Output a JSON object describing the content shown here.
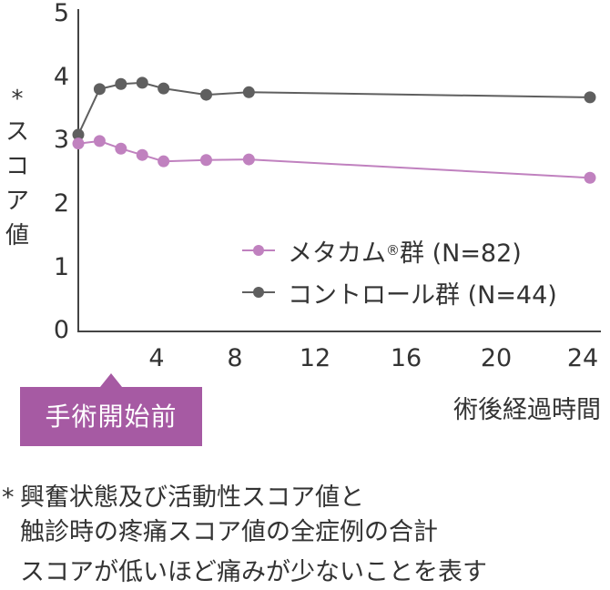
{
  "chart_data": {
    "type": "line",
    "title": "",
    "xlabel": "術後経過時間",
    "ylabel": "* スコア値",
    "xlim": [
      0,
      24
    ],
    "ylim": [
      0,
      5
    ],
    "x_ticks": [
      4,
      8,
      12,
      16,
      20,
      24
    ],
    "y_ticks": [
      0,
      1,
      2,
      3,
      4,
      5
    ],
    "grid": false,
    "legend_position": "inside-right",
    "x": [
      0,
      1,
      2,
      3,
      4,
      6,
      8,
      24
    ],
    "series": [
      {
        "name": "メタカム®群 (N=82)",
        "color": "#c081bf",
        "values": [
          2.95,
          2.99,
          2.87,
          2.77,
          2.67,
          2.69,
          2.7,
          2.41
        ]
      },
      {
        "name": "コントロール群 (N=44)",
        "color": "#5f5f5f",
        "values": [
          3.09,
          3.81,
          3.89,
          3.91,
          3.82,
          3.72,
          3.76,
          3.68
        ]
      }
    ],
    "annotations": [
      "手術開始前"
    ]
  },
  "yaxis": {
    "star": "*",
    "label_chars": [
      "ス",
      "コ",
      "ア",
      "値"
    ],
    "ticks": [
      "5",
      "4",
      "3",
      "2",
      "1",
      "0"
    ]
  },
  "xaxis": {
    "ticks": [
      "4",
      "8",
      "12",
      "16",
      "20",
      "24"
    ],
    "label": "術後経過時間"
  },
  "callout": {
    "label": "手術開始前"
  },
  "legend": {
    "items": [
      {
        "name": "メタカム",
        "reg": "®",
        "suffix": "群 (N=82)",
        "color": "#c081bf"
      },
      {
        "name": "コントロール群 (N=44)",
        "color": "#5f5f5f"
      }
    ]
  },
  "notes": {
    "star": "*",
    "line1": "興奮状態及び活動性スコア値と",
    "line2": "触診時の疼痛スコア値の全症例の合計",
    "line3": "スコアが低いほど痛みが少ないことを表す"
  }
}
